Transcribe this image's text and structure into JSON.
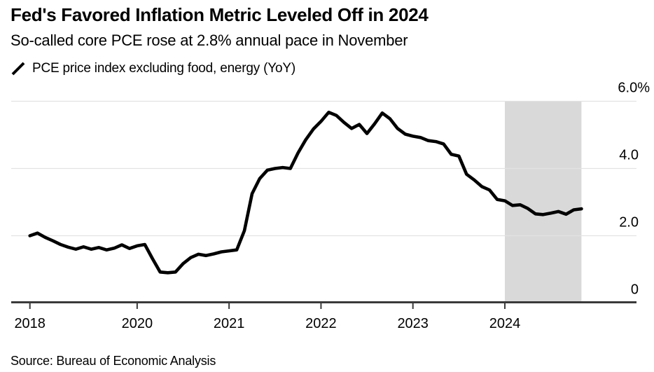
{
  "header": {
    "title": "Fed's Favored Inflation Metric Leveled Off in 2024",
    "subtitle": "So-called core PCE rose at 2.8% annual pace in November"
  },
  "legend": {
    "marker_icon": "line-series-slash-icon",
    "label": "PCE price index excluding food, energy (YoY)"
  },
  "source": {
    "text": "Source: Bureau of Economic Analysis"
  },
  "colors": {
    "line": "#000000",
    "grid": "#e2e2e2",
    "axis": "#3a3a3a",
    "highlight_band": "#d9d9d9",
    "background": "#ffffff",
    "text": "#000000"
  },
  "chart_data": {
    "type": "line",
    "title": "Fed's Favored Inflation Metric Leveled Off in 2024",
    "subtitle": "So-called core PCE rose at 2.8% annual pace in November",
    "legend_position": "top-left",
    "grid": "horizontal-only",
    "y_axis": {
      "side": "right",
      "unit": "%",
      "range": [
        0,
        6.4
      ],
      "ticks": [
        {
          "value": 6.0,
          "label": "6.0%"
        },
        {
          "value": 4.0,
          "label": "4.0"
        },
        {
          "value": 2.0,
          "label": "2.0"
        },
        {
          "value": 0.0,
          "label": "0"
        }
      ]
    },
    "x_axis": {
      "ticks": [
        {
          "label": "2018",
          "month_index": 0
        },
        {
          "label": "2020",
          "month_index": 14
        },
        {
          "label": "2021",
          "month_index": 26
        },
        {
          "label": "2022",
          "month_index": 38
        },
        {
          "label": "2023",
          "month_index": 50
        },
        {
          "label": "2024",
          "month_index": 62
        }
      ]
    },
    "highlight_region": {
      "start": "2024-01",
      "end": "2024-11",
      "start_month_index": 62,
      "end_month_index": 72
    },
    "x_months": [
      "2018-11",
      "2018-12",
      "2019-01",
      "2019-02",
      "2019-03",
      "2019-04",
      "2019-05",
      "2019-06",
      "2019-07",
      "2019-08",
      "2019-09",
      "2019-10",
      "2019-11",
      "2019-12",
      "2020-01",
      "2020-02",
      "2020-03",
      "2020-04",
      "2020-05",
      "2020-06",
      "2020-07",
      "2020-08",
      "2020-09",
      "2020-10",
      "2020-11",
      "2020-12",
      "2021-01",
      "2021-02",
      "2021-03",
      "2021-04",
      "2021-05",
      "2021-06",
      "2021-07",
      "2021-08",
      "2021-09",
      "2021-10",
      "2021-11",
      "2021-12",
      "2022-01",
      "2022-02",
      "2022-03",
      "2022-04",
      "2022-05",
      "2022-06",
      "2022-07",
      "2022-08",
      "2022-09",
      "2022-10",
      "2022-11",
      "2022-12",
      "2023-01",
      "2023-02",
      "2023-03",
      "2023-04",
      "2023-05",
      "2023-06",
      "2023-07",
      "2023-08",
      "2023-09",
      "2023-10",
      "2023-11",
      "2023-12",
      "2024-01",
      "2024-02",
      "2024-03",
      "2024-04",
      "2024-05",
      "2024-06",
      "2024-07",
      "2024-08",
      "2024-09",
      "2024-10",
      "2024-11"
    ],
    "series": [
      {
        "name": "PCE price index excluding food, energy (YoY)",
        "color": "#000000",
        "values": [
          2.0,
          2.08,
          1.95,
          1.85,
          1.74,
          1.66,
          1.6,
          1.67,
          1.6,
          1.65,
          1.58,
          1.63,
          1.73,
          1.62,
          1.7,
          1.74,
          1.32,
          0.92,
          0.9,
          0.92,
          1.17,
          1.35,
          1.45,
          1.41,
          1.46,
          1.52,
          1.55,
          1.58,
          2.15,
          3.25,
          3.7,
          3.95,
          4.0,
          4.03,
          4.0,
          4.46,
          4.85,
          5.17,
          5.4,
          5.67,
          5.58,
          5.37,
          5.19,
          5.31,
          5.04,
          5.33,
          5.65,
          5.48,
          5.19,
          5.02,
          4.96,
          4.92,
          4.83,
          4.8,
          4.73,
          4.42,
          4.37,
          3.83,
          3.66,
          3.46,
          3.36,
          3.08,
          3.04,
          2.9,
          2.92,
          2.81,
          2.65,
          2.63,
          2.67,
          2.72,
          2.64,
          2.77,
          2.8
        ]
      }
    ]
  }
}
